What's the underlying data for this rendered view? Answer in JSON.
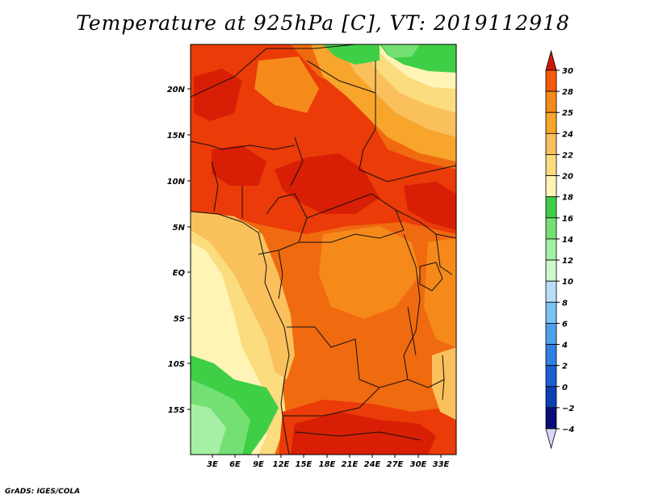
{
  "title": "Temperature at 925hPa [C], VT: 2019112918",
  "credit": "GrADS: IGES/COLA",
  "colors": {
    "deep_red": "#d81e05",
    "red": "#ea3b08",
    "orange_red": "#f06a10",
    "orange": "#f7a52b",
    "light_orange": "#fac05c",
    "tan": "#fbdc7e",
    "pale_yellow": "#fff4b6",
    "green_dark": "#3fcf47",
    "green": "#74e073",
    "green_light": "#a5f0a4",
    "green_pale": "#cef8c9"
  },
  "map": {
    "lat_labels": [
      "20N",
      "15N",
      "10N",
      "5N",
      "EQ",
      "5S",
      "10S",
      "15S"
    ],
    "lon_labels": [
      "3E",
      "6E",
      "9E",
      "12E",
      "15E",
      "18E",
      "21E",
      "24E",
      "27E",
      "30E",
      "33E"
    ]
  },
  "colorbar": {
    "labels": [
      "30",
      "28",
      "25",
      "24",
      "22",
      "20",
      "18",
      "16",
      "14",
      "12",
      "10",
      "8",
      "6",
      "4",
      "2",
      "0",
      "−2",
      "−4"
    ],
    "colors": [
      "#e82a05",
      "#f25b0b",
      "#f58a1a",
      "#f7a52b",
      "#fac05c",
      "#fbdc7e",
      "#fff4b6",
      "#3fcf47",
      "#74e073",
      "#a5f0a4",
      "#cef8c9",
      "#b9def8",
      "#7cc2f3",
      "#4ea0ed",
      "#2f80e4",
      "#1a5fcf",
      "#0c3fb2",
      "#080f78"
    ],
    "top_arrow_color": "#d0170a",
    "bottom_arrow_color": "#d8d8f8"
  }
}
